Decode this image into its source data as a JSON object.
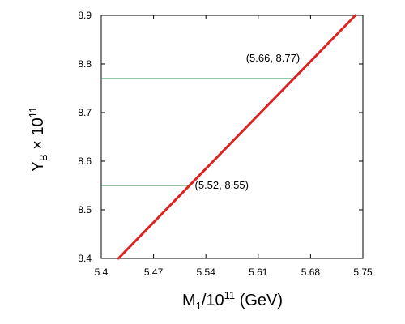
{
  "chart_data": {
    "type": "line",
    "title": "",
    "xlabel": {
      "base": "M",
      "subscript": "1",
      "middle": "/10",
      "superscript": "11",
      "suffix": " (GeV)"
    },
    "ylabel": {
      "base": "Y",
      "subscript": "B",
      "middle": " × 10",
      "superscript": "11"
    },
    "xlim": [
      5.4,
      5.75
    ],
    "ylim": [
      8.4,
      8.9
    ],
    "xticks": [
      "5.4",
      "5.47",
      "5.54",
      "5.61",
      "5.68",
      "5.75"
    ],
    "yticks": [
      "8.4",
      "8.5",
      "8.6",
      "8.7",
      "8.8",
      "8.9"
    ],
    "grid": false,
    "series": [
      {
        "color": "#dd2222",
        "points": [
          [
            5.423,
            8.4
          ],
          [
            5.74,
            8.9
          ]
        ]
      }
    ],
    "reference_lines": [
      {
        "y": 8.77,
        "x_end": 5.66,
        "color": "#2e8b57"
      },
      {
        "y": 8.55,
        "x_end": 5.52,
        "color": "#2e8b57"
      }
    ],
    "annotations": [
      {
        "label": "(5.66, 8.77)",
        "x": 5.66,
        "y": 8.77
      },
      {
        "label": "(5.52, 8.55)",
        "x": 5.52,
        "y": 8.55
      }
    ]
  }
}
